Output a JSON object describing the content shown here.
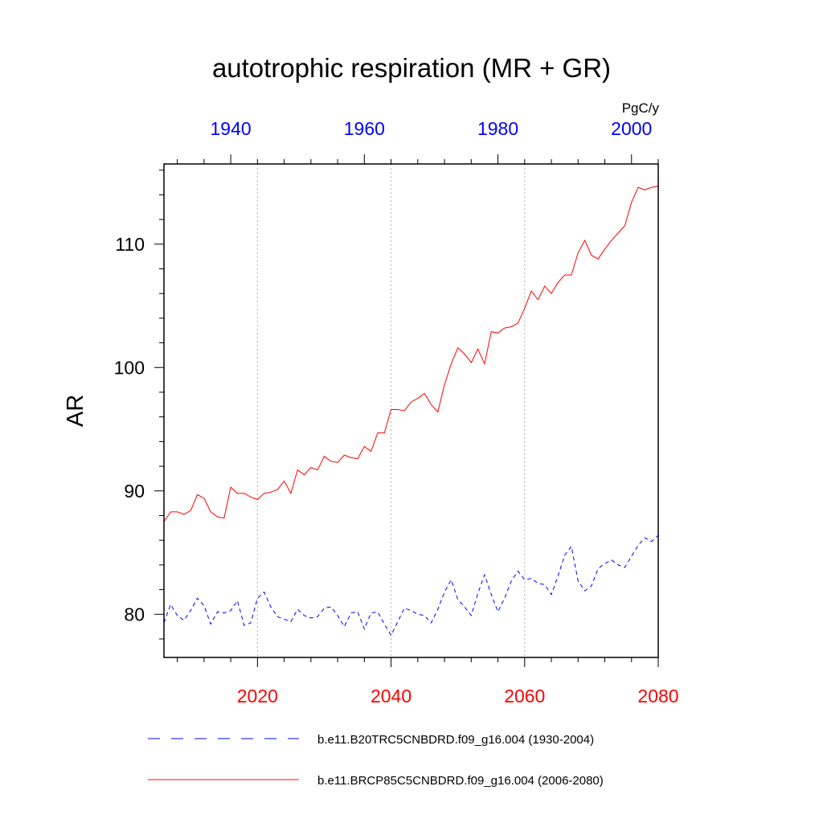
{
  "chart_data": {
    "type": "line",
    "title": "autotrophic respiration (MR + GR)",
    "units": "PgC/y",
    "ylabel": "AR",
    "ylim": [
      76.5,
      116.5
    ],
    "yticks": [
      "80",
      "90",
      "100",
      "110"
    ],
    "bottom_axis": {
      "xlim": [
        2006,
        2080
      ],
      "ticks": [
        "2020",
        "2040",
        "2060",
        "2080"
      ],
      "color": "#ff0000"
    },
    "top_axis": {
      "xlim": [
        1930,
        2004
      ],
      "ticks": [
        "1940",
        "1960",
        "1980",
        "2000"
      ],
      "color": "#0000ff"
    },
    "grid": "vertical dotted at major bottom ticks",
    "legend_position": "bottom",
    "series": [
      {
        "name": "b.e11.B20TRC5CNBDRD.f09_g16.004 (1930-2004)",
        "axis": "top",
        "color": "#0000ff",
        "dash": "dashed",
        "x": [
          1930,
          1931,
          1932,
          1933,
          1934,
          1935,
          1936,
          1937,
          1938,
          1939,
          1940,
          1941,
          1942,
          1943,
          1944,
          1945,
          1946,
          1947,
          1948,
          1949,
          1950,
          1951,
          1952,
          1953,
          1954,
          1955,
          1956,
          1957,
          1958,
          1959,
          1960,
          1961,
          1962,
          1963,
          1964,
          1965,
          1966,
          1967,
          1968,
          1969,
          1970,
          1971,
          1972,
          1973,
          1974,
          1975,
          1976,
          1977,
          1978,
          1979,
          1980,
          1981,
          1982,
          1983,
          1984,
          1985,
          1986,
          1987,
          1988,
          1989,
          1990,
          1991,
          1992,
          1993,
          1994,
          1995,
          1996,
          1997,
          1998,
          1999,
          2000,
          2001,
          2002,
          2003,
          2004
        ],
        "values": [
          79.3,
          80.8,
          79.9,
          79.5,
          80.3,
          81.3,
          80.7,
          79.2,
          80.2,
          80.1,
          80.3,
          81.1,
          79.1,
          79.3,
          81.3,
          81.8,
          80.6,
          79.8,
          79.6,
          79.4,
          80.4,
          79.9,
          79.7,
          79.8,
          80.5,
          80.6,
          79.9,
          79.0,
          80.1,
          80.2,
          78.8,
          80.1,
          80.2,
          79.2,
          78.3,
          79.4,
          80.5,
          80.3,
          80.0,
          79.9,
          79.3,
          80.4,
          81.8,
          82.8,
          81.2,
          80.6,
          79.9,
          81.7,
          83.2,
          81.6,
          80.2,
          81.3,
          82.7,
          83.5,
          82.8,
          82.9,
          82.5,
          82.4,
          81.6,
          83.1,
          84.8,
          85.5,
          82.7,
          81.9,
          82.3,
          83.7,
          84.1,
          84.4,
          84.0,
          83.8,
          84.7,
          85.6,
          86.2,
          85.9,
          86.4
        ]
      },
      {
        "name": "b.e11.BRCP85C5CNBDRD.f09_g16.004 (2006-2080)",
        "axis": "bottom",
        "color": "#ff0000",
        "dash": "solid",
        "x": [
          2006,
          2007,
          2008,
          2009,
          2010,
          2011,
          2012,
          2013,
          2014,
          2015,
          2016,
          2017,
          2018,
          2019,
          2020,
          2021,
          2022,
          2023,
          2024,
          2025,
          2026,
          2027,
          2028,
          2029,
          2030,
          2031,
          2032,
          2033,
          2034,
          2035,
          2036,
          2037,
          2038,
          2039,
          2040,
          2041,
          2042,
          2043,
          2044,
          2045,
          2046,
          2047,
          2048,
          2049,
          2050,
          2051,
          2052,
          2053,
          2054,
          2055,
          2056,
          2057,
          2058,
          2059,
          2060,
          2061,
          2062,
          2063,
          2064,
          2065,
          2066,
          2067,
          2068,
          2069,
          2070,
          2071,
          2072,
          2073,
          2074,
          2075,
          2076,
          2077,
          2078,
          2079,
          2080
        ],
        "values": [
          87.5,
          88.3,
          88.3,
          88.1,
          88.4,
          89.7,
          89.4,
          88.3,
          87.9,
          87.8,
          90.3,
          89.8,
          89.8,
          89.5,
          89.3,
          89.8,
          89.9,
          90.1,
          90.8,
          89.8,
          91.7,
          91.3,
          91.9,
          91.7,
          92.8,
          92.4,
          92.3,
          92.9,
          92.7,
          92.6,
          93.6,
          93.2,
          94.7,
          94.7,
          96.6,
          96.6,
          96.5,
          97.2,
          97.5,
          97.9,
          97.0,
          96.4,
          98.6,
          100.3,
          101.6,
          101.1,
          100.4,
          101.5,
          100.3,
          102.9,
          102.8,
          103.2,
          103.3,
          103.6,
          104.8,
          106.2,
          105.5,
          106.6,
          106.0,
          106.9,
          107.5,
          107.5,
          109.3,
          110.3,
          109.1,
          108.8,
          109.6,
          110.3,
          110.9,
          111.5,
          113.4,
          114.6,
          114.4,
          114.6,
          114.7
        ]
      }
    ]
  }
}
